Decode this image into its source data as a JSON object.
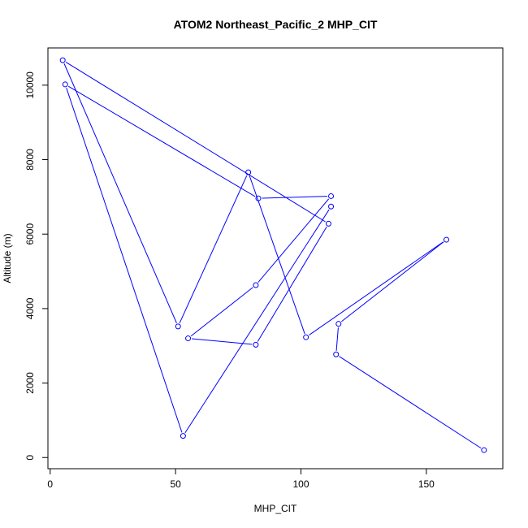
{
  "chart_data": {
    "type": "line",
    "title": "ATOM2 Northeast_Pacific_2 MHP_CIT",
    "xlabel": "MHP_CIT",
    "ylabel": "Altitude (m)",
    "xlim": [
      -0.9,
      180.5
    ],
    "ylim": [
      -300,
      11000
    ],
    "xticks": [
      0,
      50,
      100,
      150
    ],
    "yticks": [
      0,
      2000,
      4000,
      6000,
      8000,
      10000
    ],
    "grid": false,
    "legend": "none",
    "series": [
      {
        "color": "#0000ff",
        "marker": "open-circle",
        "points": [
          {
            "x": 173,
            "y": 200
          },
          {
            "x": 114,
            "y": 2770
          },
          {
            "x": 115,
            "y": 3590
          },
          {
            "x": 158,
            "y": 5850
          },
          {
            "x": 102,
            "y": 3230
          },
          {
            "x": 79,
            "y": 7660
          },
          {
            "x": 51,
            "y": 3520
          },
          {
            "x": 5,
            "y": 10670
          },
          {
            "x": 111,
            "y": 6280
          },
          {
            "x": 82,
            "y": 3030
          },
          {
            "x": 55,
            "y": 3200
          },
          {
            "x": 82,
            "y": 4630
          },
          {
            "x": 112,
            "y": 7020
          },
          {
            "x": 83,
            "y": 6960
          },
          {
            "x": 6,
            "y": 10020
          },
          {
            "x": 53,
            "y": 580
          },
          {
            "x": 112,
            "y": 6740
          }
        ]
      }
    ]
  }
}
